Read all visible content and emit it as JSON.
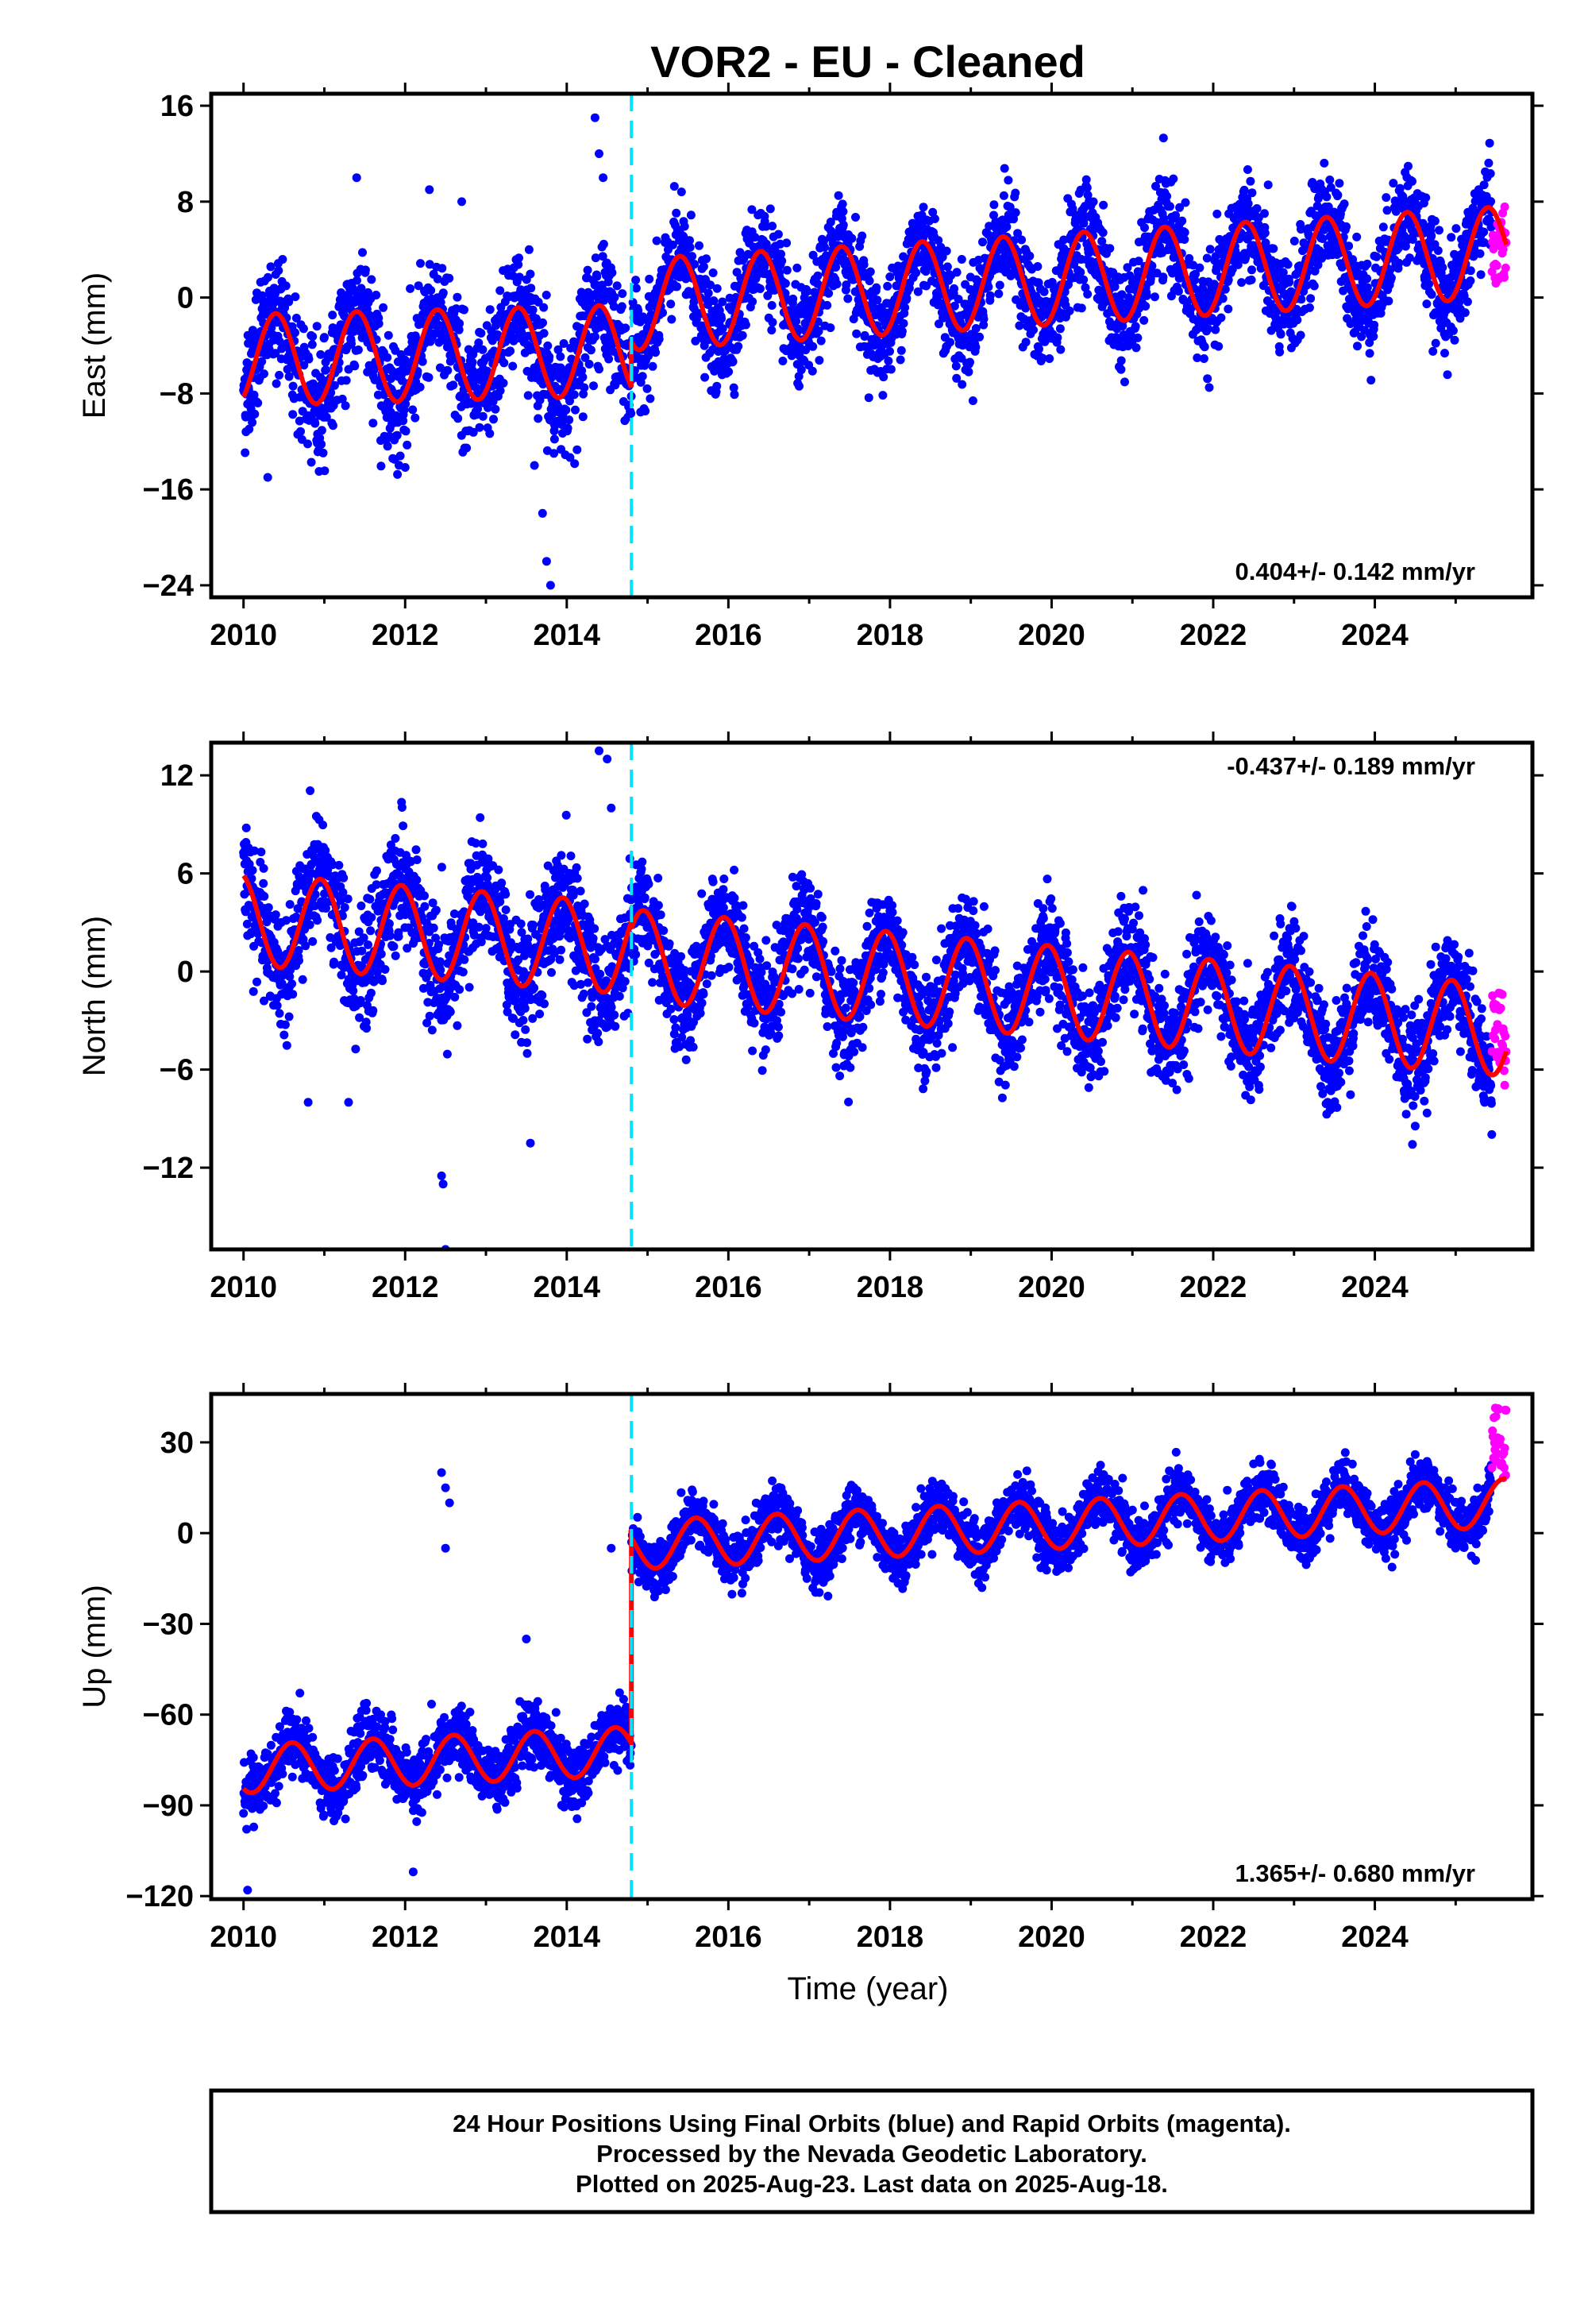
{
  "title": "VOR2  - EU - Cleaned",
  "x_axis_label": "Time (year)",
  "caption": [
    "24 Hour Positions Using Final Orbits (blue) and Rapid Orbits (magenta).",
    "Processed by the Nevada Geodetic Laboratory.",
    "Plotted on 2025-Aug-23. Last data on 2025-Aug-18."
  ],
  "colors": {
    "final_orbits": "#0000ff",
    "rapid_orbits": "#ff00ff",
    "model": "#ff0000",
    "equipment_change": "#00e5ff"
  },
  "chart_data": [
    {
      "type": "scatter",
      "component": "east",
      "ylabel": "East (mm)",
      "xlim": [
        2009.6,
        2025.95
      ],
      "ylim": [
        -25,
        17
      ],
      "xticks": [
        2010,
        2012,
        2014,
        2016,
        2018,
        2020,
        2022,
        2024
      ],
      "yticks": [
        -24,
        -16,
        -8,
        0,
        8,
        16
      ],
      "grid": false,
      "rate_label": "0.404+/- 0.142 mm/yr",
      "rate_label_position": "bottom-right",
      "equipment_change_year": 2014.8,
      "model": {
        "pre_offset_mean_mm": [
          [
            2010.0,
            -5.2
          ],
          [
            2014.8,
            -4.4
          ]
        ],
        "post_offset_mean_mm": [
          [
            2014.8,
            -0.6
          ],
          [
            2025.6,
            3.8
          ]
        ],
        "annual_amplitude_mm": 3.8,
        "annual_peak_phase_year": 0.4
      },
      "series": [
        {
          "name": "Final Orbits (blue)",
          "approx_range_mm": [
            -24,
            16
          ],
          "x_range": [
            2010.0,
            2025.45
          ],
          "outliers": [
            [
              2013.6,
              -14
            ],
            [
              2013.7,
              -18
            ],
            [
              2013.75,
              -22
            ],
            [
              2013.8,
              -24
            ],
            [
              2014.35,
              15
            ],
            [
              2014.4,
              12
            ],
            [
              2014.45,
              10
            ],
            [
              2011.4,
              10
            ],
            [
              2012.3,
              9
            ],
            [
              2012.7,
              8
            ],
            [
              2010.3,
              -15
            ]
          ]
        },
        {
          "name": "Rapid Orbits (magenta)",
          "approx_range_mm": [
            1,
            8
          ],
          "x_range": [
            2025.45,
            2025.63
          ]
        }
      ]
    },
    {
      "type": "scatter",
      "component": "north",
      "ylabel": "North (mm)",
      "xlim": [
        2009.6,
        2025.95
      ],
      "ylim": [
        -17,
        14
      ],
      "xticks": [
        2010,
        2012,
        2014,
        2016,
        2018,
        2020,
        2022,
        2024
      ],
      "yticks": [
        -12,
        -6,
        0,
        6,
        12
      ],
      "grid": false,
      "rate_label": "-0.437+/- 0.189 mm/yr",
      "rate_label_position": "top-right",
      "equipment_change_year": 2014.8,
      "model": {
        "pre_offset_mean_mm": [
          [
            2010.0,
            3.2
          ],
          [
            2014.8,
            1.4
          ]
        ],
        "post_offset_mean_mm": [
          [
            2014.8,
            1.0
          ],
          [
            2025.6,
            -3.6
          ]
        ],
        "annual_amplitude_mm": 2.8,
        "annual_peak_phase_year": 0.95
      },
      "series": [
        {
          "name": "Final Orbits (blue)",
          "approx_range_mm": [
            -17,
            13.5
          ],
          "x_range": [
            2010.0,
            2025.45
          ],
          "outliers": [
            [
              2012.45,
              -12.5
            ],
            [
              2012.47,
              -13
            ],
            [
              2012.5,
              -17
            ],
            [
              2013.55,
              -10.5
            ],
            [
              2014.4,
              13.5
            ],
            [
              2014.5,
              13
            ],
            [
              2014.55,
              10
            ],
            [
              2010.8,
              -8
            ],
            [
              2011.3,
              -8
            ]
          ]
        },
        {
          "name": "Rapid Orbits (magenta)",
          "approx_range_mm": [
            -7,
            -1
          ],
          "x_range": [
            2025.45,
            2025.63
          ]
        }
      ]
    },
    {
      "type": "scatter",
      "component": "up",
      "ylabel": "Up (mm)",
      "xlim": [
        2009.6,
        2025.95
      ],
      "ylim": [
        -121,
        46
      ],
      "xticks": [
        2010,
        2012,
        2014,
        2016,
        2018,
        2020,
        2022,
        2024
      ],
      "yticks": [
        -120,
        -90,
        -60,
        -30,
        0,
        30
      ],
      "grid": false,
      "rate_label": "1.365+/- 0.680 mm/yr",
      "rate_label_position": "bottom-right",
      "equipment_change_year": 2014.8,
      "model": {
        "pre_offset_mean_mm": [
          [
            2010.0,
            -78
          ],
          [
            2014.8,
            -72
          ]
        ],
        "post_offset_mean_mm": [
          [
            2014.8,
            -4
          ],
          [
            2025.6,
            10
          ]
        ],
        "annual_amplitude_mm": 8.0,
        "annual_peak_phase_year": 0.6
      },
      "series": [
        {
          "name": "Final Orbits (blue)",
          "approx_range_mm": [
            -118,
            40
          ],
          "x_range": [
            2010.0,
            2025.45
          ],
          "outliers": [
            [
              2012.45,
              20
            ],
            [
              2012.5,
              15
            ],
            [
              2012.55,
              10
            ],
            [
              2012.5,
              -5
            ],
            [
              2012.1,
              -112
            ],
            [
              2010.05,
              -118
            ],
            [
              2014.55,
              -5
            ],
            [
              2013.5,
              -35
            ]
          ]
        },
        {
          "name": "Rapid Orbits (magenta)",
          "approx_range_mm": [
            18,
            42
          ],
          "x_range": [
            2025.45,
            2025.63
          ]
        }
      ]
    }
  ]
}
